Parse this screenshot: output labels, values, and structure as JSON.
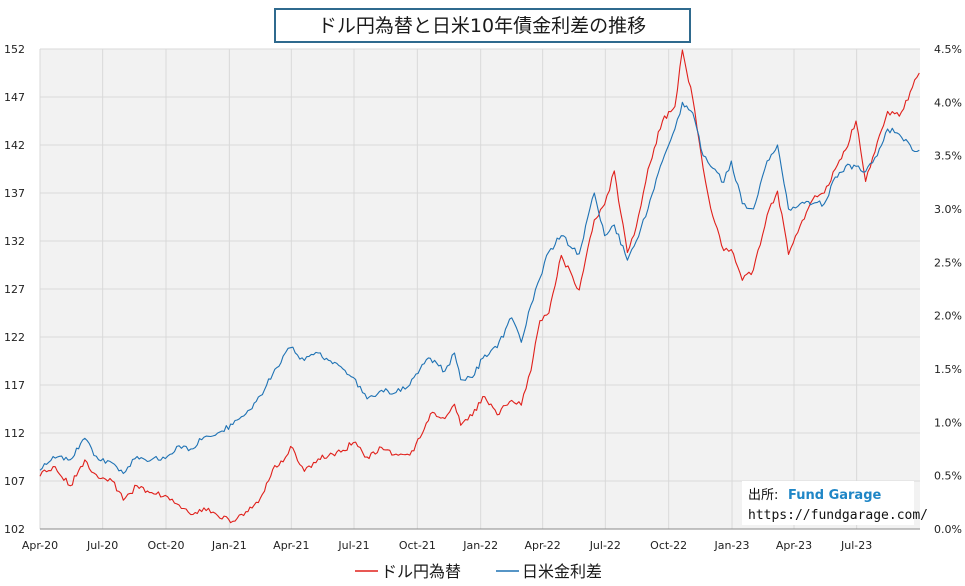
{
  "chart_data": {
    "type": "line",
    "title": "ドル円為替と日米10年債金利差の推移",
    "x_tick_labels": [
      "Apr-20",
      "Jul-20",
      "Oct-20",
      "Jan-21",
      "Apr-21",
      "Jul-21",
      "Oct-21",
      "Jan-22",
      "Apr-22",
      "Jul-22",
      "Oct-22",
      "Jan-23",
      "Apr-23",
      "Jul-23"
    ],
    "x_range": [
      "2020-04",
      "2023-10"
    ],
    "y_left": {
      "ticks": [
        "152",
        "147",
        "142",
        "137",
        "132",
        "127",
        "122",
        "117",
        "112",
        "107",
        "102"
      ],
      "range": [
        102,
        152
      ]
    },
    "y_right": {
      "ticks": [
        "4.5%",
        "4.0%",
        "3.5%",
        "3.0%",
        "2.5%",
        "2.0%",
        "1.5%",
        "1.0%",
        "0.5%",
        "0.0%"
      ],
      "range": [
        0.0,
        4.5
      ]
    },
    "grid": true,
    "legend_position": "bottom",
    "series": [
      {
        "name": "ドル円為替",
        "axis": "left",
        "color": "#e0201b",
        "points": [
          [
            "2020-04-01",
            107.5
          ],
          [
            "2020-04-20",
            108.5
          ],
          [
            "2020-05-15",
            106.5
          ],
          [
            "2020-06-05",
            109.2
          ],
          [
            "2020-06-25",
            107.3
          ],
          [
            "2020-07-15",
            107.0
          ],
          [
            "2020-07-31",
            105.0
          ],
          [
            "2020-08-20",
            106.5
          ],
          [
            "2020-09-10",
            105.8
          ],
          [
            "2020-09-30",
            105.5
          ],
          [
            "2020-10-20",
            104.5
          ],
          [
            "2020-11-06",
            103.5
          ],
          [
            "2020-11-25",
            104.2
          ],
          [
            "2020-12-15",
            103.4
          ],
          [
            "2021-01-06",
            102.8
          ],
          [
            "2021-01-25",
            103.8
          ],
          [
            "2021-02-15",
            105.2
          ],
          [
            "2021-03-05",
            108.2
          ],
          [
            "2021-03-20",
            109.0
          ],
          [
            "2021-03-31",
            110.6
          ],
          [
            "2021-04-20",
            108.0
          ],
          [
            "2021-05-10",
            109.3
          ],
          [
            "2021-05-31",
            109.8
          ],
          [
            "2021-06-15",
            110.2
          ],
          [
            "2021-06-30",
            111.0
          ],
          [
            "2021-07-20",
            109.5
          ],
          [
            "2021-08-10",
            110.5
          ],
          [
            "2021-08-31",
            109.8
          ],
          [
            "2021-09-20",
            109.7
          ],
          [
            "2021-10-05",
            111.5
          ],
          [
            "2021-10-20",
            114.0
          ],
          [
            "2021-11-10",
            113.5
          ],
          [
            "2021-11-24",
            115.0
          ],
          [
            "2021-12-03",
            112.8
          ],
          [
            "2021-12-20",
            113.8
          ],
          [
            "2022-01-04",
            115.8
          ],
          [
            "2022-01-25",
            113.9
          ],
          [
            "2022-02-15",
            115.4
          ],
          [
            "2022-03-01",
            114.9
          ],
          [
            "2022-03-15",
            118.5
          ],
          [
            "2022-03-28",
            123.7
          ],
          [
            "2022-04-10",
            124.5
          ],
          [
            "2022-04-28",
            130.5
          ],
          [
            "2022-05-24",
            126.9
          ],
          [
            "2022-06-15",
            134.2
          ],
          [
            "2022-06-30",
            135.8
          ],
          [
            "2022-07-14",
            139.3
          ],
          [
            "2022-08-02",
            130.8
          ],
          [
            "2022-08-15",
            133.5
          ],
          [
            "2022-09-01",
            139.5
          ],
          [
            "2022-09-22",
            144.5
          ],
          [
            "2022-10-10",
            146.0
          ],
          [
            "2022-10-21",
            151.9
          ],
          [
            "2022-11-05",
            146.8
          ],
          [
            "2022-11-20",
            139.6
          ],
          [
            "2022-12-01",
            135.4
          ],
          [
            "2022-12-20",
            131.0
          ],
          [
            "2022-12-31",
            131.1
          ],
          [
            "2023-01-16",
            127.9
          ],
          [
            "2023-02-01",
            129.0
          ],
          [
            "2023-02-21",
            134.7
          ],
          [
            "2023-03-08",
            137.2
          ],
          [
            "2023-03-24",
            130.6
          ],
          [
            "2023-04-10",
            133.6
          ],
          [
            "2023-04-28",
            136.3
          ],
          [
            "2023-05-15",
            137.0
          ],
          [
            "2023-05-31",
            139.5
          ],
          [
            "2023-06-15",
            141.5
          ],
          [
            "2023-06-30",
            144.5
          ],
          [
            "2023-07-14",
            138.2
          ],
          [
            "2023-07-31",
            142.3
          ],
          [
            "2023-08-15",
            145.5
          ],
          [
            "2023-09-01",
            145.0
          ],
          [
            "2023-09-20",
            148.0
          ],
          [
            "2023-09-30",
            149.5
          ]
        ]
      },
      {
        "name": "日米金利差",
        "axis": "right",
        "color": "#1e72b4",
        "points": [
          [
            "2020-04-01",
            0.55
          ],
          [
            "2020-04-20",
            0.68
          ],
          [
            "2020-05-15",
            0.65
          ],
          [
            "2020-06-05",
            0.85
          ],
          [
            "2020-06-25",
            0.65
          ],
          [
            "2020-07-15",
            0.62
          ],
          [
            "2020-07-31",
            0.52
          ],
          [
            "2020-08-20",
            0.68
          ],
          [
            "2020-09-10",
            0.65
          ],
          [
            "2020-09-30",
            0.66
          ],
          [
            "2020-10-20",
            0.78
          ],
          [
            "2020-11-06",
            0.75
          ],
          [
            "2020-11-25",
            0.86
          ],
          [
            "2020-12-15",
            0.9
          ],
          [
            "2021-01-06",
            0.98
          ],
          [
            "2021-01-25",
            1.08
          ],
          [
            "2021-02-15",
            1.25
          ],
          [
            "2021-03-05",
            1.45
          ],
          [
            "2021-03-20",
            1.62
          ],
          [
            "2021-03-31",
            1.7
          ],
          [
            "2021-04-20",
            1.58
          ],
          [
            "2021-05-10",
            1.65
          ],
          [
            "2021-05-31",
            1.55
          ],
          [
            "2021-06-15",
            1.5
          ],
          [
            "2021-06-30",
            1.42
          ],
          [
            "2021-07-20",
            1.22
          ],
          [
            "2021-08-10",
            1.3
          ],
          [
            "2021-08-31",
            1.28
          ],
          [
            "2021-09-20",
            1.35
          ],
          [
            "2021-10-05",
            1.5
          ],
          [
            "2021-10-20",
            1.6
          ],
          [
            "2021-11-10",
            1.48
          ],
          [
            "2021-11-24",
            1.65
          ],
          [
            "2021-12-03",
            1.4
          ],
          [
            "2021-12-20",
            1.42
          ],
          [
            "2022-01-04",
            1.6
          ],
          [
            "2022-01-25",
            1.7
          ],
          [
            "2022-02-15",
            1.98
          ],
          [
            "2022-03-01",
            1.75
          ],
          [
            "2022-03-15",
            2.1
          ],
          [
            "2022-03-28",
            2.35
          ],
          [
            "2022-04-10",
            2.6
          ],
          [
            "2022-04-28",
            2.75
          ],
          [
            "2022-05-24",
            2.58
          ],
          [
            "2022-06-15",
            3.15
          ],
          [
            "2022-06-30",
            2.75
          ],
          [
            "2022-07-14",
            2.85
          ],
          [
            "2022-08-02",
            2.52
          ],
          [
            "2022-08-15",
            2.7
          ],
          [
            "2022-09-01",
            3.0
          ],
          [
            "2022-09-22",
            3.45
          ],
          [
            "2022-10-10",
            3.75
          ],
          [
            "2022-10-21",
            4.0
          ],
          [
            "2022-11-05",
            3.9
          ],
          [
            "2022-11-20",
            3.5
          ],
          [
            "2022-12-01",
            3.4
          ],
          [
            "2022-12-20",
            3.25
          ],
          [
            "2022-12-31",
            3.45
          ],
          [
            "2023-01-16",
            3.05
          ],
          [
            "2023-02-01",
            3.0
          ],
          [
            "2023-02-21",
            3.45
          ],
          [
            "2023-03-08",
            3.6
          ],
          [
            "2023-03-24",
            3.0
          ],
          [
            "2023-04-10",
            3.05
          ],
          [
            "2023-04-28",
            3.05
          ],
          [
            "2023-05-15",
            3.05
          ],
          [
            "2023-05-31",
            3.3
          ],
          [
            "2023-06-15",
            3.4
          ],
          [
            "2023-06-30",
            3.4
          ],
          [
            "2023-07-14",
            3.35
          ],
          [
            "2023-07-31",
            3.5
          ],
          [
            "2023-08-15",
            3.75
          ],
          [
            "2023-09-01",
            3.7
          ],
          [
            "2023-09-20",
            3.55
          ],
          [
            "2023-09-30",
            3.55
          ]
        ]
      }
    ]
  },
  "source": {
    "label": "出所:",
    "name": "Fund Garage",
    "url": "https://fundgarage.com/"
  }
}
